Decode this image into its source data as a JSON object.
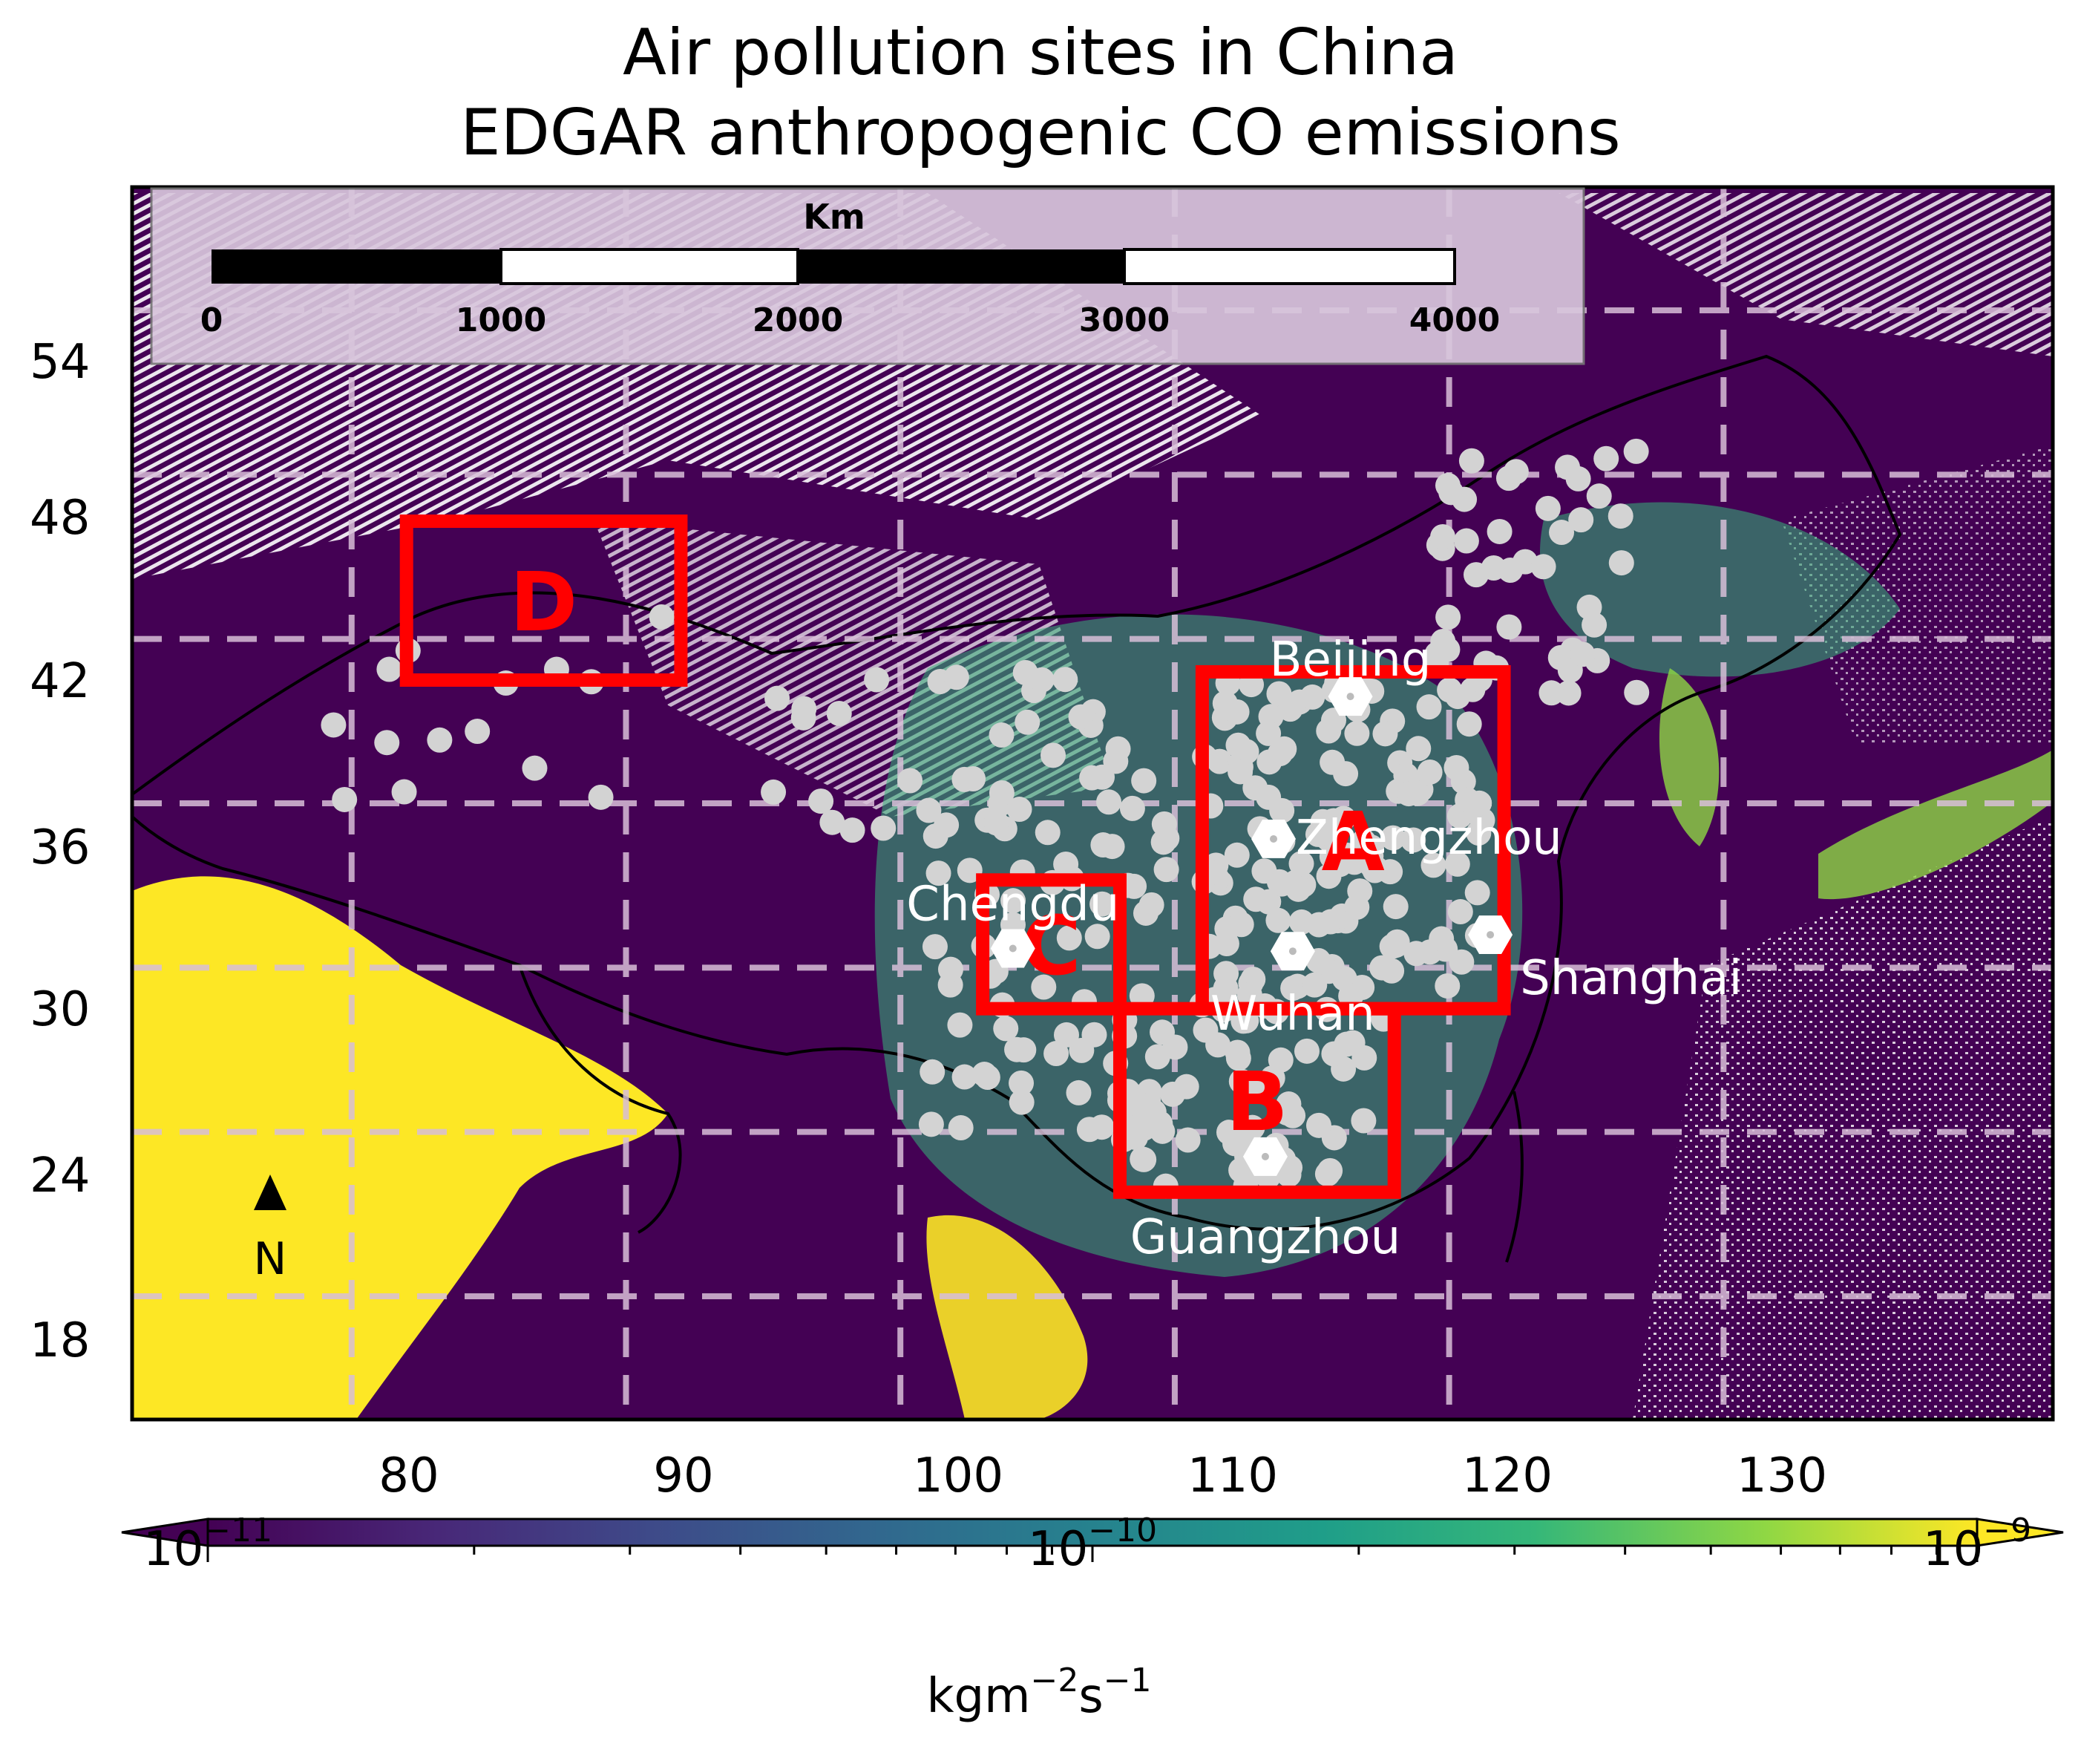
{
  "title": {
    "line1": "Air pollution sites in China",
    "line2": "EDGAR anthropogenic CO emissions"
  },
  "axes": {
    "x_ticks": [
      "80",
      "90",
      "100",
      "110",
      "120",
      "130"
    ],
    "y_ticks": [
      "54",
      "48",
      "42",
      "36",
      "30",
      "24",
      "18"
    ],
    "lon_range": [
      72,
      142
    ],
    "lat_range": [
      13.5,
      58.5
    ],
    "grid": "dashed"
  },
  "scalebar": {
    "unit": "Km",
    "ticks": [
      "0",
      "1000",
      "2000",
      "3000",
      "4000"
    ]
  },
  "north_arrow": {
    "label": "N"
  },
  "colorbar": {
    "colormap": "viridis",
    "scale": "log",
    "range": [
      1e-11,
      1e-09
    ],
    "ticks": [
      {
        "base": "10",
        "exp": "−11"
      },
      {
        "base": "10",
        "exp": "−10"
      },
      {
        "base": "10",
        "exp": "−9"
      }
    ],
    "label": {
      "base": "kgm",
      "exp1": "−2",
      "mid": "s",
      "exp2": "−1"
    },
    "extend": "both"
  },
  "colors": {
    "low": "#440154",
    "mid": "#21918c",
    "high": "#fde725",
    "region_box": "#ff0000",
    "sites": "#d3d3d3",
    "cities": "#ffffff"
  },
  "regions": [
    {
      "label": "A",
      "lon": [
        111,
        122
      ],
      "lat": [
        28.5,
        40.8
      ]
    },
    {
      "label": "B",
      "lon": [
        108,
        118
      ],
      "lat": [
        21.8,
        28.5
      ]
    },
    {
      "label": "C",
      "lon": [
        103,
        108
      ],
      "lat": [
        28.5,
        33.2
      ]
    },
    {
      "label": "D",
      "lon": [
        82,
        92
      ],
      "lat": [
        40.5,
        46.3
      ]
    }
  ],
  "cities": [
    {
      "name": "Beijing",
      "lon": 116.4,
      "lat": 39.9
    },
    {
      "name": "Zhengzhou",
      "lon": 113.6,
      "lat": 34.7
    },
    {
      "name": "Shanghai",
      "lon": 121.5,
      "lat": 31.2
    },
    {
      "name": "Wuhan",
      "lon": 114.3,
      "lat": 30.6
    },
    {
      "name": "Chengdu",
      "lon": 104.1,
      "lat": 30.7
    },
    {
      "name": "Guangzhou",
      "lon": 113.3,
      "lat": 23.1
    }
  ]
}
